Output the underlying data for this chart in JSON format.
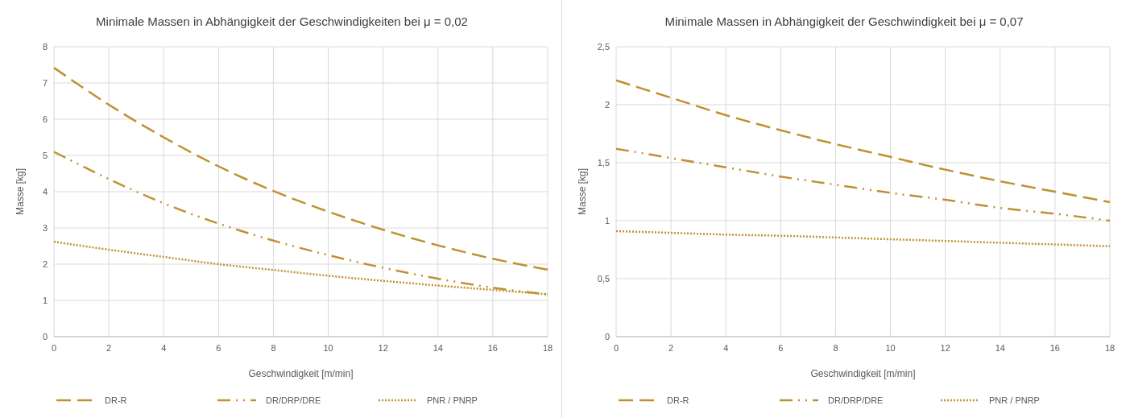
{
  "chart_data": [
    {
      "type": "line",
      "title": "Minimale Massen in Abhängigkeit der Geschwindigkeiten bei μ = 0,02",
      "xlabel": "Geschwindigkeit [m/min]",
      "ylabel": "Masse [kg]",
      "x": [
        0,
        2,
        4,
        6,
        8,
        10,
        12,
        14,
        16,
        18
      ],
      "xlim": [
        0,
        18
      ],
      "xticks": [
        0,
        2,
        4,
        6,
        8,
        10,
        12,
        14,
        16,
        18
      ],
      "ylim": [
        0,
        8
      ],
      "yticks": [
        0,
        1,
        2,
        3,
        4,
        5,
        6,
        7,
        8
      ],
      "grid": true,
      "legend": "bottom",
      "marker": "none",
      "series": [
        {
          "name": "DR-R",
          "color": "#bf9130",
          "line_style": "dashed",
          "values": [
            7.42,
            6.4,
            5.5,
            4.7,
            4.02,
            3.45,
            2.95,
            2.52,
            2.15,
            1.85
          ]
        },
        {
          "name": "DR/DRP/DRE",
          "color": "#bf9130",
          "line_style": "dashdotdot",
          "values": [
            5.1,
            4.35,
            3.68,
            3.12,
            2.65,
            2.25,
            1.9,
            1.6,
            1.35,
            1.17
          ]
        },
        {
          "name": "PNR / PNRP",
          "color": "#bf9130",
          "line_style": "dotted",
          "values": [
            2.62,
            2.4,
            2.2,
            2.0,
            1.84,
            1.68,
            1.54,
            1.41,
            1.29,
            1.17
          ]
        }
      ]
    },
    {
      "type": "line",
      "title": "Minimale Massen in Abhängigkeit der Geschwindigkeit bei μ = 0,07",
      "xlabel": "Geschwindigkeit [m/min]",
      "ylabel": "Masse [kg]",
      "x": [
        0,
        2,
        4,
        6,
        8,
        10,
        12,
        14,
        16,
        18
      ],
      "xlim": [
        0,
        18
      ],
      "xticks": [
        0,
        2,
        4,
        6,
        8,
        10,
        12,
        14,
        16,
        18
      ],
      "ylim": [
        0,
        2.5
      ],
      "yticks": [
        0,
        {
          "value": 0.5,
          "label": "0,5"
        },
        1,
        {
          "value": 1.5,
          "label": "1,5"
        },
        2,
        {
          "value": 2.5,
          "label": "2,5"
        }
      ],
      "grid": true,
      "legend": "bottom",
      "marker": "none",
      "series": [
        {
          "name": "DR-R",
          "color": "#bf9130",
          "line_style": "dashed",
          "values": [
            2.21,
            2.06,
            1.91,
            1.78,
            1.66,
            1.55,
            1.44,
            1.34,
            1.25,
            1.16
          ]
        },
        {
          "name": "DR/DRP/DRE",
          "color": "#bf9130",
          "line_style": "dashdotdot",
          "values": [
            1.62,
            1.54,
            1.46,
            1.38,
            1.31,
            1.24,
            1.18,
            1.11,
            1.06,
            1.0
          ]
        },
        {
          "name": "PNR / PNRP",
          "color": "#bf9130",
          "line_style": "dotted",
          "values": [
            0.91,
            0.895,
            0.88,
            0.87,
            0.855,
            0.84,
            0.825,
            0.81,
            0.795,
            0.78
          ]
        }
      ]
    }
  ]
}
